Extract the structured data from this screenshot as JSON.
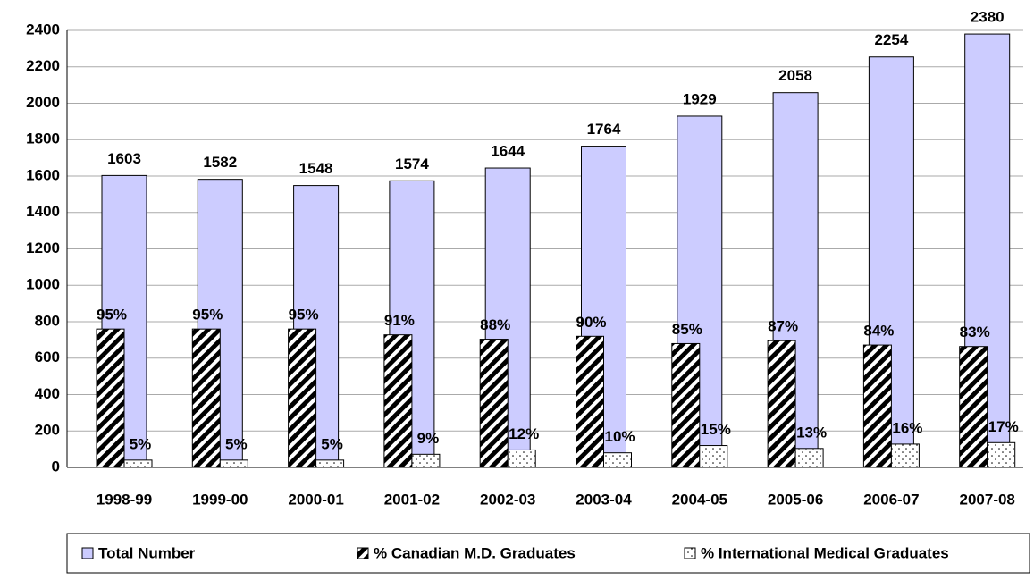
{
  "chart_data": {
    "type": "bar",
    "categories": [
      "1998-99",
      "1999-00",
      "2000-01",
      "2001-02",
      "2002-03",
      "2003-04",
      "2004-05",
      "2005-06",
      "2006-07",
      "2007-08"
    ],
    "series": [
      {
        "name": "Total Number",
        "color": "#ccccff",
        "values": [
          1603,
          1582,
          1548,
          1574,
          1644,
          1764,
          1929,
          2058,
          2254,
          2380
        ]
      },
      {
        "name": "% Canadian M.D. Graduates",
        "color": "#000000",
        "axis": "y2",
        "values": [
          95,
          95,
          95,
          91,
          88,
          90,
          85,
          87,
          84,
          83
        ],
        "value_labels": [
          "95%",
          "95%",
          "95%",
          "91%",
          "88%",
          "90%",
          "85%",
          "87%",
          "84%",
          "83%"
        ]
      },
      {
        "name": "% International Medical Graduates",
        "color": "#ffffff",
        "axis": "y2",
        "values": [
          5,
          5,
          5,
          9,
          12,
          10,
          15,
          13,
          16,
          17
        ],
        "value_labels": [
          "5%",
          "5%",
          "5%",
          "9%",
          "12%",
          "10%",
          "15%",
          "13%",
          "16%",
          "17%"
        ]
      }
    ],
    "ylim": [
      0,
      2400
    ],
    "yticks": [
      0,
      200,
      400,
      600,
      800,
      1000,
      1200,
      1400,
      1600,
      1800,
      2000,
      2200,
      2400
    ],
    "y2lim": [
      0,
      300
    ],
    "grid": true,
    "legend": "bottom"
  }
}
